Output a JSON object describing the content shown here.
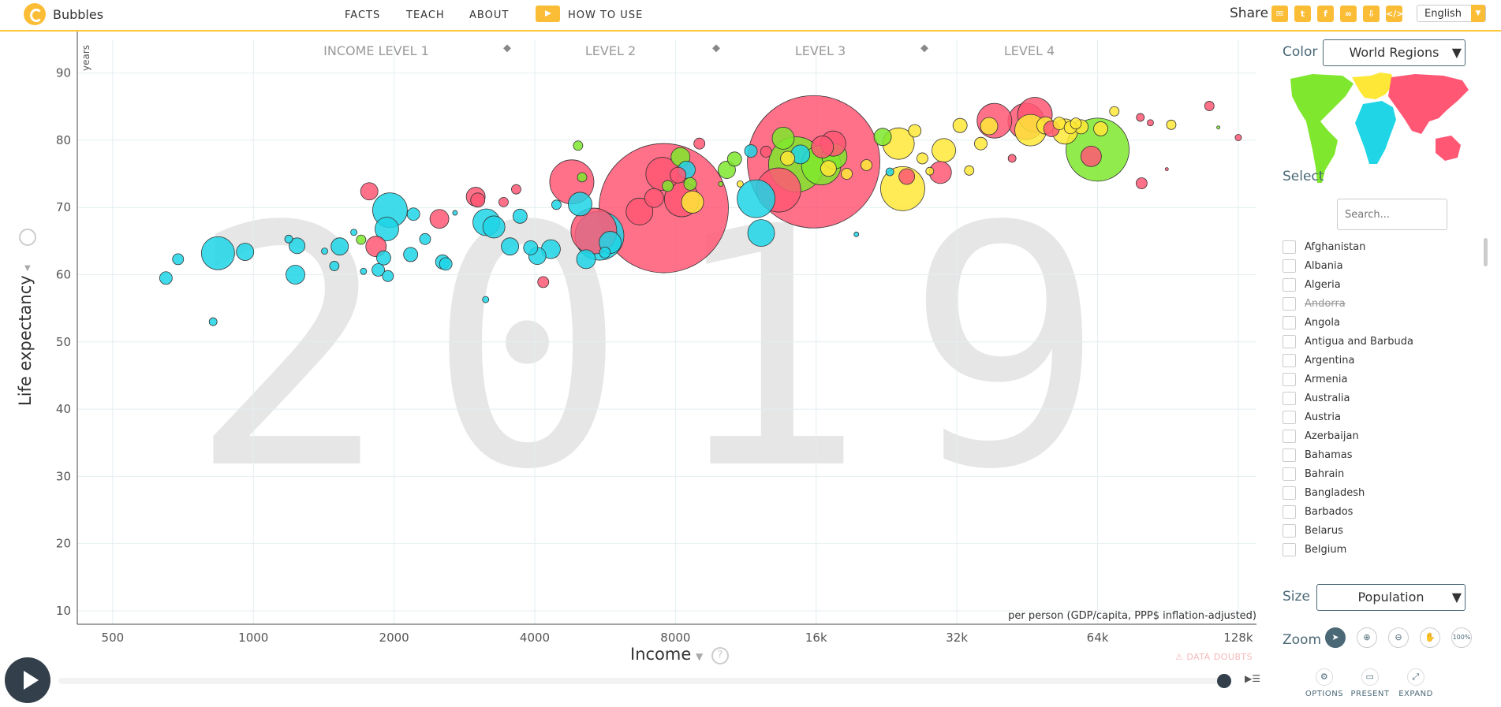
{
  "header": {
    "app_title": "Bubbles",
    "nav": [
      "FACTS",
      "TEACH",
      "ABOUT"
    ],
    "how_to_use": "HOW TO USE",
    "share_label": "Share",
    "share_icons": [
      "email-icon",
      "twitter-icon",
      "facebook-icon",
      "link-icon",
      "download-icon",
      "embed-icon"
    ],
    "language": "English"
  },
  "chart_labels": {
    "y_axis": "Life expectancy",
    "y_unit": "years",
    "x_axis": "Income",
    "x_unit": "per person (GDP/capita, PPP$ inflation-adjusted)",
    "data_doubts": "DATA DOUBTS",
    "year": "2019",
    "income_levels": [
      "INCOME LEVEL 1",
      "LEVEL 2",
      "LEVEL 3",
      "LEVEL 4"
    ]
  },
  "chart_data": {
    "type": "scatter",
    "x_scale": "log",
    "x_ticks": [
      "500",
      "1000",
      "2000",
      "4000",
      "8000",
      "16k",
      "32k",
      "64k",
      "128k"
    ],
    "x_tick_values": [
      500,
      1000,
      2000,
      4000,
      8000,
      16000,
      32000,
      64000,
      128000
    ],
    "xlim": [
      420,
      140000
    ],
    "y_ticks": [
      10,
      20,
      30,
      40,
      50,
      60,
      70,
      80,
      90
    ],
    "ylim": [
      8,
      95
    ],
    "grid": true,
    "size_metric": "population",
    "colors": {
      "africa": "#1fd5e6",
      "americas": "#7fe72d",
      "asia": "#ff5774",
      "europe": "#ffe737"
    },
    "bubbles": [
      {
        "x": 650,
        "y": 59.5,
        "r": 8,
        "c": "africa"
      },
      {
        "x": 690,
        "y": 62.3,
        "r": 7,
        "c": "africa"
      },
      {
        "x": 820,
        "y": 53,
        "r": 5,
        "c": "africa"
      },
      {
        "x": 840,
        "y": 63.2,
        "r": 21,
        "c": "africa"
      },
      {
        "x": 960,
        "y": 63.4,
        "r": 11,
        "c": "africa"
      },
      {
        "x": 1190,
        "y": 65.3,
        "r": 5,
        "c": "africa"
      },
      {
        "x": 1230,
        "y": 60,
        "r": 12,
        "c": "africa"
      },
      {
        "x": 1240,
        "y": 64.3,
        "r": 10,
        "c": "africa"
      },
      {
        "x": 1420,
        "y": 63.5,
        "r": 4,
        "c": "africa"
      },
      {
        "x": 1490,
        "y": 61.3,
        "r": 6,
        "c": "africa"
      },
      {
        "x": 1530,
        "y": 64.2,
        "r": 11,
        "c": "africa"
      },
      {
        "x": 1640,
        "y": 66.3,
        "r": 4,
        "c": "africa"
      },
      {
        "x": 1700,
        "y": 65.2,
        "r": 6,
        "c": "americas"
      },
      {
        "x": 1720,
        "y": 60.5,
        "r": 4,
        "c": "africa"
      },
      {
        "x": 1770,
        "y": 72.4,
        "r": 11,
        "c": "asia"
      },
      {
        "x": 1830,
        "y": 64.2,
        "r": 13,
        "c": "asia"
      },
      {
        "x": 1850,
        "y": 60.7,
        "r": 8,
        "c": "africa"
      },
      {
        "x": 1900,
        "y": 62.5,
        "r": 9,
        "c": "africa"
      },
      {
        "x": 1940,
        "y": 59.8,
        "r": 7,
        "c": "africa"
      },
      {
        "x": 1960,
        "y": 69.6,
        "r": 22,
        "c": "africa"
      },
      {
        "x": 1930,
        "y": 66.8,
        "r": 15,
        "c": "africa"
      },
      {
        "x": 2170,
        "y": 63,
        "r": 9,
        "c": "africa"
      },
      {
        "x": 2200,
        "y": 69,
        "r": 8,
        "c": "africa"
      },
      {
        "x": 2330,
        "y": 65.3,
        "r": 7,
        "c": "africa"
      },
      {
        "x": 2500,
        "y": 68.3,
        "r": 12,
        "c": "asia"
      },
      {
        "x": 2540,
        "y": 61.9,
        "r": 9,
        "c": "africa"
      },
      {
        "x": 2580,
        "y": 61.6,
        "r": 8,
        "c": "africa"
      },
      {
        "x": 2700,
        "y": 69.2,
        "r": 3,
        "c": "africa"
      },
      {
        "x": 2990,
        "y": 71.6,
        "r": 12,
        "c": "asia"
      },
      {
        "x": 3020,
        "y": 71.1,
        "r": 9,
        "c": "asia"
      },
      {
        "x": 3140,
        "y": 56.3,
        "r": 4,
        "c": "africa"
      },
      {
        "x": 3150,
        "y": 67.8,
        "r": 17,
        "c": "africa"
      },
      {
        "x": 3270,
        "y": 67.1,
        "r": 14,
        "c": "africa"
      },
      {
        "x": 3430,
        "y": 70.8,
        "r": 6,
        "c": "asia"
      },
      {
        "x": 3540,
        "y": 64.2,
        "r": 11,
        "c": "africa"
      },
      {
        "x": 3650,
        "y": 72.7,
        "r": 6,
        "c": "asia"
      },
      {
        "x": 3720,
        "y": 68.7,
        "r": 9,
        "c": "africa"
      },
      {
        "x": 3920,
        "y": 64,
        "r": 9,
        "c": "africa"
      },
      {
        "x": 4050,
        "y": 62.8,
        "r": 11,
        "c": "africa"
      },
      {
        "x": 4170,
        "y": 58.9,
        "r": 7,
        "c": "asia"
      },
      {
        "x": 4330,
        "y": 63.8,
        "r": 12,
        "c": "africa"
      },
      {
        "x": 4450,
        "y": 70.4,
        "r": 6,
        "c": "africa"
      },
      {
        "x": 4800,
        "y": 73.8,
        "r": 28,
        "c": "asia"
      },
      {
        "x": 4950,
        "y": 79.2,
        "r": 6,
        "c": "americas"
      },
      {
        "x": 5000,
        "y": 70.5,
        "r": 15,
        "c": "africa"
      },
      {
        "x": 5050,
        "y": 74.5,
        "r": 6,
        "c": "americas"
      },
      {
        "x": 5150,
        "y": 62.3,
        "r": 12,
        "c": "africa"
      },
      {
        "x": 5350,
        "y": 66.5,
        "r": 29,
        "c": "asia"
      },
      {
        "x": 5500,
        "y": 65.8,
        "r": 31,
        "c": "africa"
      },
      {
        "x": 5650,
        "y": 63.3,
        "r": 7,
        "c": "africa"
      },
      {
        "x": 5800,
        "y": 64.8,
        "r": 14,
        "c": "africa"
      },
      {
        "x": 6700,
        "y": 69.4,
        "r": 17,
        "c": "asia"
      },
      {
        "x": 7200,
        "y": 71.4,
        "r": 12,
        "c": "asia"
      },
      {
        "x": 7550,
        "y": 69.9,
        "r": 82,
        "c": "asia"
      },
      {
        "x": 7500,
        "y": 75,
        "r": 21,
        "c": "asia"
      },
      {
        "x": 7700,
        "y": 73.2,
        "r": 7,
        "c": "americas"
      },
      {
        "x": 8100,
        "y": 74.8,
        "r": 10,
        "c": "asia"
      },
      {
        "x": 8200,
        "y": 77.5,
        "r": 12,
        "c": "americas"
      },
      {
        "x": 8250,
        "y": 71.2,
        "r": 22,
        "c": "asia"
      },
      {
        "x": 8450,
        "y": 75.6,
        "r": 11,
        "c": "africa"
      },
      {
        "x": 8600,
        "y": 73.5,
        "r": 8,
        "c": "americas"
      },
      {
        "x": 8700,
        "y": 70.8,
        "r": 14,
        "c": "europe"
      },
      {
        "x": 9000,
        "y": 79.5,
        "r": 7,
        "c": "asia"
      },
      {
        "x": 10000,
        "y": 73.5,
        "r": 3,
        "c": "americas"
      },
      {
        "x": 10300,
        "y": 75.6,
        "r": 11,
        "c": "americas"
      },
      {
        "x": 10700,
        "y": 77.2,
        "r": 9,
        "c": "americas"
      },
      {
        "x": 11000,
        "y": 73.5,
        "r": 4,
        "c": "europe"
      },
      {
        "x": 11600,
        "y": 78.4,
        "r": 8,
        "c": "africa"
      },
      {
        "x": 11900,
        "y": 71.3,
        "r": 24,
        "c": "africa"
      },
      {
        "x": 12200,
        "y": 66.2,
        "r": 17,
        "c": "africa"
      },
      {
        "x": 12500,
        "y": 78.3,
        "r": 7,
        "c": "asia"
      },
      {
        "x": 13300,
        "y": 72.6,
        "r": 28,
        "c": "asia"
      },
      {
        "x": 13600,
        "y": 80.3,
        "r": 14,
        "c": "americas"
      },
      {
        "x": 13900,
        "y": 77.3,
        "r": 9,
        "c": "europe"
      },
      {
        "x": 14500,
        "y": 76.4,
        "r": 35,
        "c": "americas"
      },
      {
        "x": 14800,
        "y": 77.9,
        "r": 12,
        "c": "africa"
      },
      {
        "x": 15800,
        "y": 76.8,
        "r": 84,
        "c": "asia"
      },
      {
        "x": 16500,
        "y": 79,
        "r": 14,
        "c": "asia"
      },
      {
        "x": 17000,
        "y": 75.8,
        "r": 10,
        "c": "europe"
      },
      {
        "x": 16400,
        "y": 76.3,
        "r": 25,
        "c": "americas"
      },
      {
        "x": 17500,
        "y": 77.6,
        "r": 16,
        "c": "americas"
      },
      {
        "x": 17400,
        "y": 79.5,
        "r": 16,
        "c": "asia"
      },
      {
        "x": 18600,
        "y": 75,
        "r": 7,
        "c": "europe"
      },
      {
        "x": 19500,
        "y": 66,
        "r": 3,
        "c": "africa"
      },
      {
        "x": 20500,
        "y": 76.3,
        "r": 7,
        "c": "europe"
      },
      {
        "x": 22200,
        "y": 80.5,
        "r": 11,
        "c": "americas"
      },
      {
        "x": 23000,
        "y": 75.3,
        "r": 5,
        "c": "africa"
      },
      {
        "x": 24000,
        "y": 79.5,
        "r": 20,
        "c": "europe"
      },
      {
        "x": 24500,
        "y": 72.8,
        "r": 28,
        "c": "europe"
      },
      {
        "x": 25000,
        "y": 74.6,
        "r": 10,
        "c": "asia"
      },
      {
        "x": 26000,
        "y": 81.4,
        "r": 8,
        "c": "europe"
      },
      {
        "x": 27000,
        "y": 77.3,
        "r": 7,
        "c": "europe"
      },
      {
        "x": 28000,
        "y": 75.4,
        "r": 5,
        "c": "europe"
      },
      {
        "x": 29500,
        "y": 75.2,
        "r": 14,
        "c": "asia"
      },
      {
        "x": 30000,
        "y": 78.5,
        "r": 15,
        "c": "europe"
      },
      {
        "x": 32500,
        "y": 82.2,
        "r": 9,
        "c": "europe"
      },
      {
        "x": 34000,
        "y": 75.5,
        "r": 6,
        "c": "europe"
      },
      {
        "x": 36000,
        "y": 79.5,
        "r": 8,
        "c": "europe"
      },
      {
        "x": 37500,
        "y": 82.1,
        "r": 11,
        "c": "europe"
      },
      {
        "x": 38500,
        "y": 82.9,
        "r": 22,
        "c": "asia"
      },
      {
        "x": 42000,
        "y": 77.3,
        "r": 5,
        "c": "asia"
      },
      {
        "x": 45000,
        "y": 82.8,
        "r": 23,
        "c": "asia"
      },
      {
        "x": 46000,
        "y": 81.5,
        "r": 20,
        "c": "europe"
      },
      {
        "x": 47000,
        "y": 83.8,
        "r": 22,
        "c": "asia"
      },
      {
        "x": 49500,
        "y": 82.2,
        "r": 11,
        "c": "europe"
      },
      {
        "x": 51000,
        "y": 81.7,
        "r": 10,
        "c": "asia"
      },
      {
        "x": 53000,
        "y": 82.5,
        "r": 8,
        "c": "europe"
      },
      {
        "x": 54500,
        "y": 81.3,
        "r": 16,
        "c": "europe"
      },
      {
        "x": 56000,
        "y": 81.9,
        "r": 8,
        "c": "europe"
      },
      {
        "x": 57500,
        "y": 82.5,
        "r": 7,
        "c": "europe"
      },
      {
        "x": 59000,
        "y": 82,
        "r": 9,
        "c": "europe"
      },
      {
        "x": 62000,
        "y": 77.6,
        "r": 13,
        "c": "asia"
      },
      {
        "x": 64000,
        "y": 78.6,
        "r": 40,
        "c": "americas"
      },
      {
        "x": 65000,
        "y": 81.7,
        "r": 9,
        "c": "europe"
      },
      {
        "x": 69500,
        "y": 84.3,
        "r": 6,
        "c": "europe"
      },
      {
        "x": 79000,
        "y": 83.4,
        "r": 5,
        "c": "asia"
      },
      {
        "x": 79500,
        "y": 73.6,
        "r": 7,
        "c": "asia"
      },
      {
        "x": 83000,
        "y": 82.6,
        "r": 4,
        "c": "asia"
      },
      {
        "x": 90000,
        "y": 75.7,
        "r": 2,
        "c": "asia"
      },
      {
        "x": 92000,
        "y": 82.3,
        "r": 6,
        "c": "europe"
      },
      {
        "x": 111000,
        "y": 85.1,
        "r": 6,
        "c": "asia"
      },
      {
        "x": 116000,
        "y": 81.9,
        "r": 2,
        "c": "americas"
      },
      {
        "x": 128000,
        "y": 80.4,
        "r": 4,
        "c": "asia"
      }
    ]
  },
  "timeline": {
    "play_icon": "play-icon",
    "progress": 1.0
  },
  "panel": {
    "color_label": "Color",
    "color_value": "World Regions",
    "select_label": "Select",
    "search_placeholder": "Search...",
    "countries": [
      {
        "name": "Afghanistan",
        "disabled": false
      },
      {
        "name": "Albania",
        "disabled": false
      },
      {
        "name": "Algeria",
        "disabled": false
      },
      {
        "name": "Andorra",
        "disabled": true
      },
      {
        "name": "Angola",
        "disabled": false
      },
      {
        "name": "Antigua and Barbuda",
        "disabled": false
      },
      {
        "name": "Argentina",
        "disabled": false
      },
      {
        "name": "Armenia",
        "disabled": false
      },
      {
        "name": "Australia",
        "disabled": false
      },
      {
        "name": "Austria",
        "disabled": false
      },
      {
        "name": "Azerbaijan",
        "disabled": false
      },
      {
        "name": "Bahamas",
        "disabled": false
      },
      {
        "name": "Bahrain",
        "disabled": false
      },
      {
        "name": "Bangladesh",
        "disabled": false
      },
      {
        "name": "Barbados",
        "disabled": false
      },
      {
        "name": "Belarus",
        "disabled": false
      },
      {
        "name": "Belgium",
        "disabled": false
      }
    ],
    "size_label": "Size",
    "size_value": "Population",
    "zoom_label": "Zoom",
    "zoom_icons": [
      "cursor-icon",
      "zoom-in-icon",
      "zoom-out-icon",
      "hand-icon",
      "zoom-100-icon"
    ],
    "zoom_100_label": "100%",
    "tools": [
      "OPTIONS",
      "PRESENT",
      "EXPAND"
    ]
  }
}
